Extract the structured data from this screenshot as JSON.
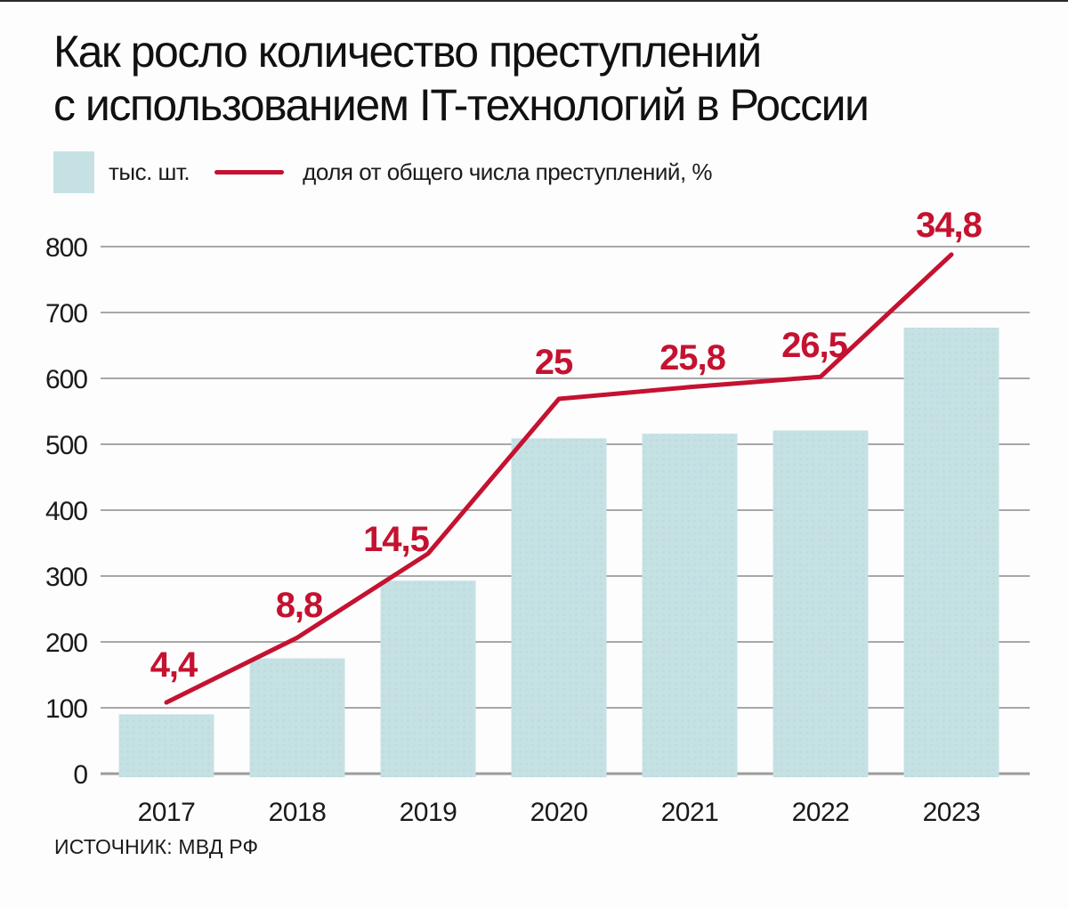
{
  "page": {
    "title_line1": "Как росло количество преступлений",
    "title_line2": "с использованием IT-технологий в России",
    "source": "ИСТОЧНИК: МВД РФ"
  },
  "legend": {
    "bar_label": "тыс. шт.",
    "line_label": "доля от общего числа преступлений, %"
  },
  "colors": {
    "bar_fill": "#c6e1e3",
    "bar_dot": "#badade",
    "line": "#c41230",
    "grid": "#a7a7a7",
    "baseline": "#9b9b9b",
    "text": "#1a1a1a",
    "background": "#fdfdfd"
  },
  "chart_data": {
    "type": "bar",
    "categories": [
      "2017",
      "2018",
      "2019",
      "2020",
      "2021",
      "2022",
      "2023"
    ],
    "series": [
      {
        "name": "тыс. шт.",
        "type": "bar",
        "values": [
          90,
          175,
          293,
          509,
          516,
          521,
          677
        ]
      },
      {
        "name": "доля от общего числа преступлений, %",
        "type": "line",
        "values": [
          4.4,
          8.8,
          14.5,
          25,
          25.8,
          26.5,
          34.8
        ],
        "point_labels": [
          "4,4",
          "8,8",
          "14,5",
          "25",
          "25,8",
          "26,5",
          "34,8"
        ]
      }
    ],
    "title": "Как росло количество преступлений с использованием IT-технологий в России",
    "xlabel": "",
    "ylabel": "тыс. шт.",
    "ylim": [
      0,
      800
    ],
    "y_ticks": [
      0,
      100,
      200,
      300,
      400,
      500,
      600,
      700,
      800
    ],
    "grid": "horizontal",
    "legend_position": "top-left"
  }
}
